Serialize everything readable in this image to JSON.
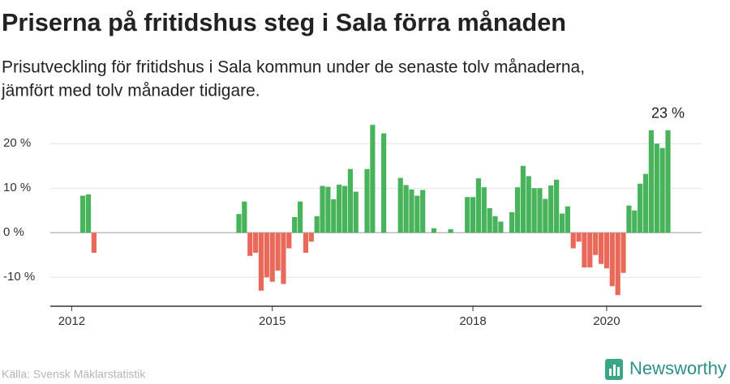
{
  "chart_data": {
    "type": "bar",
    "title": "Priserna på fritidshus steg i Sala förra månaden",
    "subtitle": [
      "Prisutveckling för fritidshus i Sala kommun under de senaste tolv månaderna,",
      "jämfört med tolv månader tidigare."
    ],
    "source": "Källa: Svensk Mäklarstatistik",
    "brand": "Newsworthy",
    "x": [
      2012.1667,
      2012.25,
      2012.3333,
      2014.5,
      2014.5833,
      2014.6667,
      2014.75,
      2014.8333,
      2014.9167,
      2015,
      2015.0833,
      2015.1667,
      2015.25,
      2015.3333,
      2015.4167,
      2015.5,
      2015.5833,
      2015.6667,
      2015.75,
      2015.8333,
      2015.9167,
      2016,
      2016.0833,
      2016.1667,
      2016.25,
      2016.4167,
      2016.5,
      2016.6667,
      2016.9167,
      2017,
      2017.0833,
      2017.1667,
      2017.25,
      2017.4167,
      2017.6667,
      2017.9167,
      2018,
      2018.0833,
      2018.1667,
      2018.25,
      2018.3333,
      2018.4167,
      2018.5833,
      2018.6667,
      2018.75,
      2018.8333,
      2018.9167,
      2019,
      2019.0833,
      2019.1667,
      2019.25,
      2019.3333,
      2019.4167,
      2019.5,
      2019.5833,
      2019.6667,
      2019.75,
      2019.8333,
      2019.9167,
      2020,
      2020.0833,
      2020.1667,
      2020.25,
      2020.3333,
      2020.4167,
      2020.5,
      2020.5833,
      2020.6667,
      2020.75,
      2020.8333,
      2020.9167
    ],
    "values": [
      8.3,
      8.6,
      -4.5,
      4.2,
      7.0,
      -5.2,
      -4.5,
      -13,
      -10,
      -11,
      -8.5,
      -11.5,
      -3.5,
      3.5,
      7,
      -4.5,
      -2,
      3.7,
      10.5,
      10.3,
      7.5,
      10.8,
      10.5,
      14.3,
      9.2,
      14.3,
      24.2,
      22.3,
      12.3,
      10.7,
      9.7,
      8.3,
      9.6,
      1,
      0.8,
      8,
      8,
      12.2,
      10.2,
      5.5,
      3.7,
      2.5,
      4.6,
      10.2,
      15,
      12.7,
      10,
      10,
      7.6,
      10.6,
      11.9,
      4.3,
      5.9,
      -3.5,
      -2,
      -7.8,
      -7.8,
      -5,
      -7,
      -8,
      -12,
      -14,
      -9,
      6.1,
      5,
      11,
      13.2,
      23,
      20,
      19,
      23
    ],
    "value_labels": [
      null,
      null,
      null,
      null,
      null,
      null,
      null,
      null,
      null,
      null,
      null,
      null,
      null,
      null,
      null,
      null,
      null,
      null,
      null,
      null,
      null,
      null,
      null,
      null,
      null,
      null,
      null,
      null,
      null,
      null,
      null,
      null,
      null,
      null,
      null,
      null,
      null,
      null,
      null,
      null,
      null,
      null,
      null,
      null,
      null,
      null,
      null,
      null,
      null,
      null,
      null,
      null,
      null,
      null,
      null,
      null,
      null,
      null,
      null,
      null,
      null,
      null,
      null,
      null,
      null,
      null,
      null,
      null,
      null,
      null,
      "23 %"
    ],
    "positive_color": "#47b35a",
    "negative_color": "#e8695a",
    "xlim": [
      2011.68,
      2021.42
    ],
    "xticks": [
      2012,
      2015,
      2018,
      2020
    ],
    "ylim": [
      -16.5,
      25
    ],
    "yticks": [
      {
        "value": -10,
        "label": "-10 %"
      },
      {
        "value": 0,
        "label": "0 %"
      },
      {
        "value": 10,
        "label": "10 %"
      },
      {
        "value": 20,
        "label": "20 %"
      }
    ],
    "grid": true
  }
}
